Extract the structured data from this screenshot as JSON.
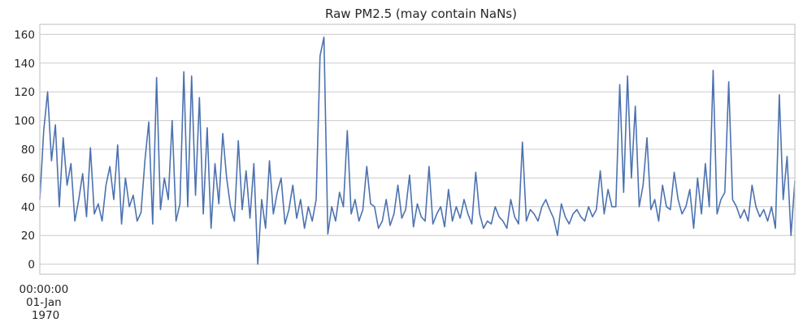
{
  "colors": {
    "line": "#4c72b0",
    "grid": "#cccccc",
    "text": "#262626",
    "background": "#ffffff"
  },
  "chart_data": {
    "type": "line",
    "title": "Raw PM2.5 (may contain NaNs)",
    "xlabel": "",
    "ylabel": "",
    "ylim": [
      -7,
      167
    ],
    "yticks": [
      0,
      20,
      40,
      60,
      80,
      100,
      120,
      140,
      160
    ],
    "grid": true,
    "legend": "none",
    "x_tick_label": [
      "00:00:00",
      "01-Jan",
      "1970"
    ],
    "x_index_range": [
      0,
      200
    ],
    "series": [
      {
        "values": [
          45,
          93,
          120,
          72,
          97,
          40,
          88,
          55,
          70,
          30,
          45,
          63,
          33,
          81,
          35,
          42,
          30,
          55,
          68,
          45,
          83,
          28,
          60,
          40,
          48,
          30,
          36,
          72,
          99,
          28,
          130,
          38,
          60,
          45,
          100,
          30,
          42,
          134,
          40,
          131,
          48,
          116,
          35,
          95,
          25,
          70,
          42,
          91,
          60,
          40,
          30,
          86,
          38,
          65,
          32,
          70,
          0,
          45,
          25,
          72,
          35,
          50,
          60,
          28,
          38,
          55,
          32,
          45,
          25,
          40,
          30,
          45,
          145,
          158,
          21,
          40,
          30,
          50,
          40,
          93,
          35,
          45,
          30,
          38,
          68,
          42,
          40,
          25,
          30,
          45,
          27,
          35,
          55,
          32,
          38,
          62,
          26,
          42,
          33,
          30,
          68,
          28,
          35,
          40,
          26,
          52,
          30,
          40,
          32,
          45,
          35,
          28,
          64,
          35,
          25,
          30,
          28,
          40,
          33,
          30,
          25,
          45,
          33,
          28,
          85,
          30,
          38,
          35,
          30,
          40,
          45,
          38,
          32,
          20,
          42,
          33,
          28,
          35,
          38,
          33,
          30,
          40,
          33,
          38,
          65,
          35,
          52,
          40,
          40,
          125,
          50,
          131,
          60,
          110,
          40,
          55,
          88,
          38,
          45,
          30,
          55,
          40,
          38,
          64,
          45,
          35,
          40,
          52,
          25,
          60,
          35,
          70,
          40,
          135,
          35,
          45,
          50,
          127,
          45,
          40,
          32,
          38,
          30,
          55,
          40,
          33,
          38,
          30,
          40,
          25,
          118,
          45,
          75,
          20,
          58
        ]
      }
    ]
  }
}
